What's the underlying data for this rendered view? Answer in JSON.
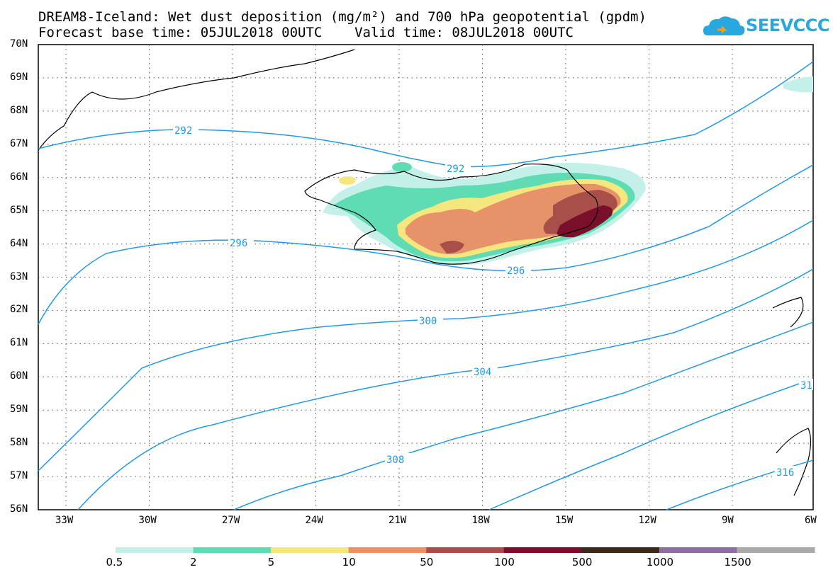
{
  "title": {
    "line1": "DREAM8-Iceland: Wet dust deposition (mg/m²) and 700 hPa geopotential (gpdm)",
    "line2": "Forecast base time: 05JUL2018 00UTC    Valid time: 08JUL2018 00UTC"
  },
  "logo": {
    "text": "SEEVCCC",
    "icon": "cloud-icon"
  },
  "axes": {
    "lat_labels": [
      "70N",
      "69N",
      "68N",
      "67N",
      "66N",
      "65N",
      "64N",
      "63N",
      "62N",
      "61N",
      "60N",
      "59N",
      "58N",
      "57N",
      "56N"
    ],
    "lon_labels": [
      "33W",
      "30W",
      "27W",
      "24W",
      "21W",
      "18W",
      "15W",
      "12W",
      "9W",
      "6W"
    ]
  },
  "contours": {
    "color": "#1e9be8",
    "labels": [
      "292",
      "292",
      "296",
      "296",
      "300",
      "304",
      "308",
      "31",
      "316"
    ]
  },
  "legend": {
    "colors": [
      "#c3f0e9",
      "#5fdcb3",
      "#f5e77e",
      "#e8926a",
      "#a94f4a",
      "#7a0f2c",
      "#3b2a1c",
      "#8f6fa3",
      "#a9a9a9"
    ],
    "labels": [
      "0.5",
      "2",
      "5",
      "10",
      "50",
      "100",
      "500",
      "1000",
      "1500"
    ]
  }
}
